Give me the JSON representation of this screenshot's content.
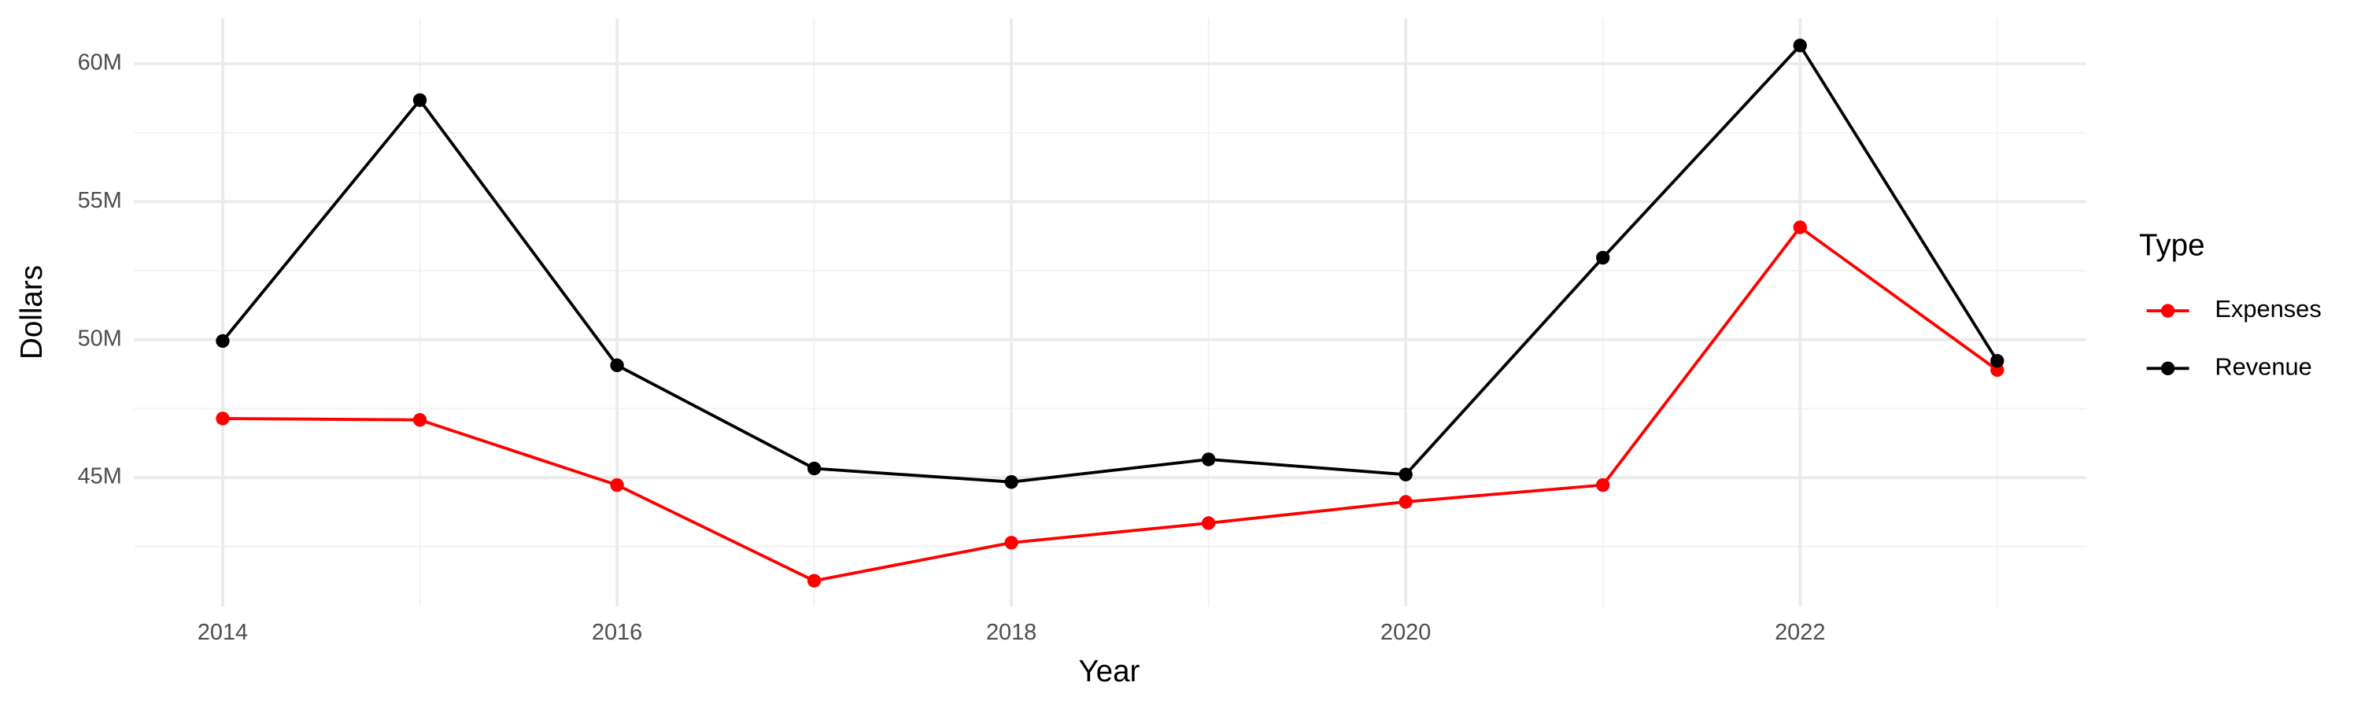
{
  "chart_data": {
    "type": "line",
    "x_label": "Year",
    "y_label": "Dollars",
    "legend_title": "Type",
    "x": [
      2014,
      2015,
      2016,
      2017,
      2018,
      2019,
      2020,
      2021,
      2022,
      2023
    ],
    "series": [
      {
        "name": "Expenses",
        "color": "#ff0000",
        "values": [
          47140000,
          47090000,
          44730000,
          41260000,
          42640000,
          43350000,
          44120000,
          44730000,
          54070000,
          48900000
        ]
      },
      {
        "name": "Revenue",
        "color": "#000000",
        "values": [
          49950000,
          58680000,
          49070000,
          45330000,
          44840000,
          45660000,
          45110000,
          52970000,
          60660000,
          49230000
        ]
      }
    ],
    "xlim": [
      2013.55,
      2023.45
    ],
    "xticks": [
      2014,
      2016,
      2018,
      2020,
      2022
    ],
    "minor_xticks": [
      2015,
      2017,
      2019,
      2021,
      2023
    ],
    "ylim": [
      40330000,
      61650000
    ],
    "yticks": [
      {
        "value": 45000000,
        "label": "45M"
      },
      {
        "value": 50000000,
        "label": "50M"
      },
      {
        "value": 55000000,
        "label": "55M"
      },
      {
        "value": 60000000,
        "label": "60M"
      }
    ],
    "minor_yticks": [
      42500000,
      47500000,
      52500000,
      57500000
    ],
    "grid": true,
    "legend": "right"
  }
}
